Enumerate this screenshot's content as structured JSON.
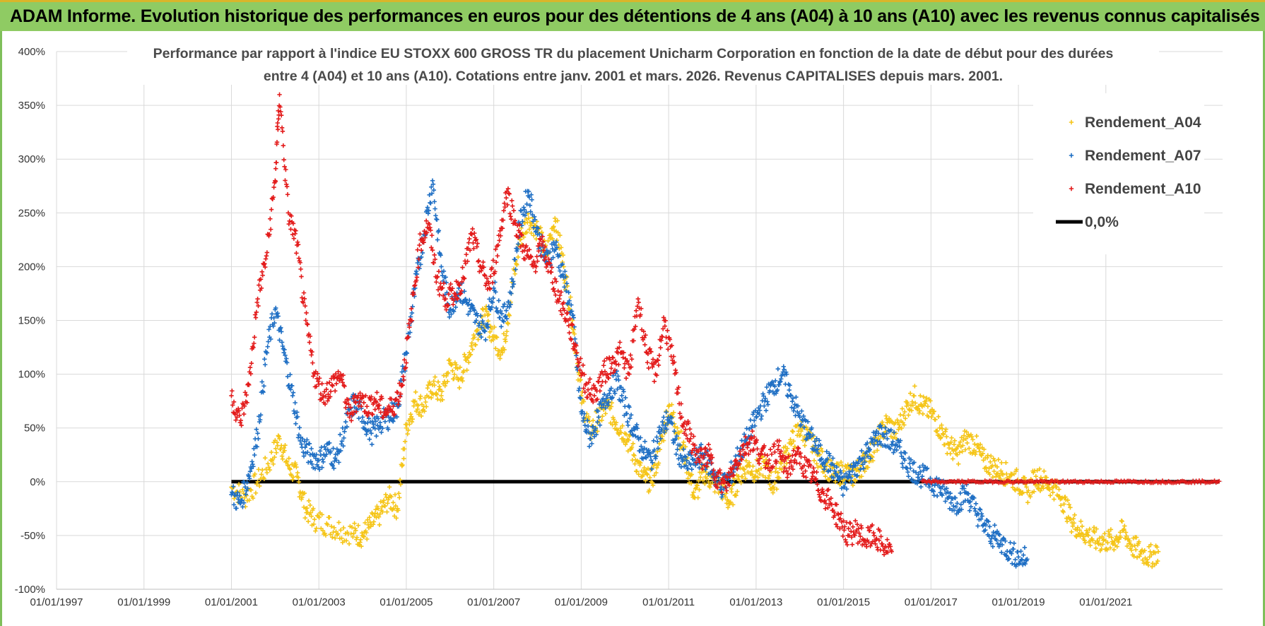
{
  "header": {
    "title": "ADAM Informe. Evolution historique des performances en euros pour des détentions de 4 ans (A04) à 10 ans (A10) avec les revenus connus capitalisés"
  },
  "chart_data": {
    "type": "scatter",
    "title_line1": "Performance par rapport à l'indice EU STOXX 600 GROSS TR  du placement Unicharm Corporation en fonction de la date de début pour des durées",
    "title_line2": "entre 4 (A04) et 10 ans (A10).  Cotations entre janv. 2001 et mars. 2026.  Revenus CAPITALISES depuis mars. 2001.",
    "xlabel": "",
    "ylabel": "",
    "ylim": [
      -100,
      400
    ],
    "xlim": [
      1997.0,
      2023.67
    ],
    "y_ticks": [
      "400%",
      "350%",
      "300%",
      "250%",
      "200%",
      "150%",
      "100%",
      "50%",
      "0%",
      "-50%",
      "-100%"
    ],
    "y_tick_values": [
      400,
      350,
      300,
      250,
      200,
      150,
      100,
      50,
      0,
      -50,
      -100
    ],
    "x_ticks": [
      "01/01/1997",
      "01/01/1999",
      "01/01/2001",
      "01/01/2003",
      "01/01/2005",
      "01/01/2007",
      "01/01/2009",
      "01/01/2011",
      "01/01/2013",
      "01/01/2015",
      "01/01/2017",
      "01/01/2019",
      "01/01/2021"
    ],
    "x_tick_values": [
      1997,
      1999,
      2001,
      2003,
      2005,
      2007,
      2009,
      2011,
      2013,
      2015,
      2017,
      2019,
      2021
    ],
    "grid": true,
    "legend_position": "top-right",
    "series": [
      {
        "name": "Rendement_A04",
        "color": "#f5c518",
        "marker": "plus",
        "points": [
          [
            2001.0,
            -5
          ],
          [
            2001.3,
            -15
          ],
          [
            2001.6,
            0
          ],
          [
            2001.9,
            20
          ],
          [
            2002.1,
            40
          ],
          [
            2002.3,
            15
          ],
          [
            2002.5,
            5
          ],
          [
            2002.7,
            -25
          ],
          [
            2002.9,
            -35
          ],
          [
            2003.2,
            -40
          ],
          [
            2003.5,
            -45
          ],
          [
            2003.8,
            -48
          ],
          [
            2004.0,
            -50
          ],
          [
            2004.2,
            -40
          ],
          [
            2004.4,
            -30
          ],
          [
            2004.6,
            -15
          ],
          [
            2004.8,
            -25
          ],
          [
            2005.0,
            50
          ],
          [
            2005.2,
            75
          ],
          [
            2005.4,
            70
          ],
          [
            2005.6,
            90
          ],
          [
            2005.8,
            80
          ],
          [
            2006.0,
            110
          ],
          [
            2006.2,
            95
          ],
          [
            2006.4,
            115
          ],
          [
            2006.6,
            140
          ],
          [
            2006.8,
            155
          ],
          [
            2007.0,
            135
          ],
          [
            2007.2,
            120
          ],
          [
            2007.4,
            175
          ],
          [
            2007.6,
            225
          ],
          [
            2007.8,
            245
          ],
          [
            2008.0,
            235
          ],
          [
            2008.2,
            210
          ],
          [
            2008.4,
            245
          ],
          [
            2008.6,
            200
          ],
          [
            2008.8,
            150
          ],
          [
            2009.0,
            80
          ],
          [
            2009.2,
            45
          ],
          [
            2009.4,
            60
          ],
          [
            2009.6,
            70
          ],
          [
            2009.8,
            55
          ],
          [
            2010.0,
            45
          ],
          [
            2010.2,
            25
          ],
          [
            2010.4,
            5
          ],
          [
            2010.6,
            0
          ],
          [
            2010.8,
            30
          ],
          [
            2011.0,
            70
          ],
          [
            2011.2,
            50
          ],
          [
            2011.4,
            20
          ],
          [
            2011.6,
            -15
          ],
          [
            2011.8,
            10
          ],
          [
            2012.0,
            0
          ],
          [
            2012.2,
            -5
          ],
          [
            2012.4,
            -20
          ],
          [
            2012.6,
            5
          ],
          [
            2012.8,
            15
          ],
          [
            2013.0,
            10
          ],
          [
            2013.2,
            15
          ],
          [
            2013.4,
            -5
          ],
          [
            2013.6,
            20
          ],
          [
            2013.8,
            35
          ],
          [
            2014.0,
            50
          ],
          [
            2014.2,
            40
          ],
          [
            2014.4,
            25
          ],
          [
            2014.6,
            15
          ],
          [
            2014.8,
            5
          ],
          [
            2015.0,
            10
          ],
          [
            2015.2,
            5
          ],
          [
            2015.4,
            15
          ],
          [
            2015.6,
            25
          ],
          [
            2015.8,
            40
          ],
          [
            2016.0,
            55
          ],
          [
            2016.2,
            45
          ],
          [
            2016.4,
            65
          ],
          [
            2016.6,
            80
          ],
          [
            2016.8,
            70
          ],
          [
            2017.0,
            65
          ],
          [
            2017.2,
            50
          ],
          [
            2017.4,
            35
          ],
          [
            2017.6,
            25
          ],
          [
            2017.8,
            40
          ],
          [
            2018.0,
            35
          ],
          [
            2018.2,
            20
          ],
          [
            2018.4,
            15
          ],
          [
            2018.6,
            10
          ],
          [
            2018.8,
            5
          ],
          [
            2019.0,
            0
          ],
          [
            2019.2,
            -10
          ],
          [
            2019.4,
            5
          ],
          [
            2019.6,
            0
          ],
          [
            2019.8,
            -5
          ],
          [
            2020.0,
            -15
          ],
          [
            2020.2,
            -35
          ],
          [
            2020.4,
            -45
          ],
          [
            2020.6,
            -50
          ],
          [
            2020.8,
            -55
          ],
          [
            2021.0,
            -55
          ],
          [
            2021.2,
            -55
          ],
          [
            2021.4,
            -45
          ],
          [
            2021.6,
            -60
          ],
          [
            2021.8,
            -65
          ],
          [
            2022.0,
            -70
          ],
          [
            2022.2,
            -65
          ]
        ]
      },
      {
        "name": "Rendement_A07",
        "color": "#1f6fc4",
        "marker": "plus",
        "points": [
          [
            2001.0,
            -12
          ],
          [
            2001.2,
            -20
          ],
          [
            2001.4,
            5
          ],
          [
            2001.6,
            45
          ],
          [
            2001.8,
            120
          ],
          [
            2002.0,
            160
          ],
          [
            2002.2,
            120
          ],
          [
            2002.4,
            80
          ],
          [
            2002.6,
            35
          ],
          [
            2002.8,
            25
          ],
          [
            2003.0,
            20
          ],
          [
            2003.2,
            30
          ],
          [
            2003.4,
            20
          ],
          [
            2003.6,
            50
          ],
          [
            2003.8,
            75
          ],
          [
            2004.0,
            60
          ],
          [
            2004.2,
            45
          ],
          [
            2004.4,
            55
          ],
          [
            2004.6,
            60
          ],
          [
            2004.8,
            70
          ],
          [
            2005.0,
            120
          ],
          [
            2005.2,
            180
          ],
          [
            2005.4,
            230
          ],
          [
            2005.6,
            280
          ],
          [
            2005.8,
            200
          ],
          [
            2006.0,
            160
          ],
          [
            2006.2,
            180
          ],
          [
            2006.4,
            165
          ],
          [
            2006.6,
            150
          ],
          [
            2006.8,
            140
          ],
          [
            2007.0,
            180
          ],
          [
            2007.2,
            150
          ],
          [
            2007.4,
            175
          ],
          [
            2007.6,
            240
          ],
          [
            2007.8,
            270
          ],
          [
            2008.0,
            230
          ],
          [
            2008.2,
            205
          ],
          [
            2008.4,
            220
          ],
          [
            2008.6,
            190
          ],
          [
            2008.8,
            155
          ],
          [
            2009.0,
            65
          ],
          [
            2009.2,
            40
          ],
          [
            2009.4,
            60
          ],
          [
            2009.6,
            80
          ],
          [
            2009.8,
            95
          ],
          [
            2010.0,
            70
          ],
          [
            2010.2,
            50
          ],
          [
            2010.4,
            30
          ],
          [
            2010.6,
            20
          ],
          [
            2010.8,
            45
          ],
          [
            2011.0,
            60
          ],
          [
            2011.2,
            30
          ],
          [
            2011.4,
            15
          ],
          [
            2011.6,
            20
          ],
          [
            2011.8,
            25
          ],
          [
            2012.0,
            10
          ],
          [
            2012.2,
            -5
          ],
          [
            2012.4,
            5
          ],
          [
            2012.6,
            25
          ],
          [
            2012.8,
            40
          ],
          [
            2013.0,
            60
          ],
          [
            2013.2,
            75
          ],
          [
            2013.4,
            90
          ],
          [
            2013.6,
            100
          ],
          [
            2013.8,
            80
          ],
          [
            2014.0,
            60
          ],
          [
            2014.2,
            45
          ],
          [
            2014.4,
            30
          ],
          [
            2014.6,
            20
          ],
          [
            2014.8,
            10
          ],
          [
            2015.0,
            -5
          ],
          [
            2015.2,
            10
          ],
          [
            2015.4,
            20
          ],
          [
            2015.6,
            30
          ],
          [
            2015.8,
            45
          ],
          [
            2016.0,
            40
          ],
          [
            2016.2,
            35
          ],
          [
            2016.4,
            20
          ],
          [
            2016.6,
            10
          ],
          [
            2016.8,
            5
          ],
          [
            2017.0,
            0
          ],
          [
            2017.2,
            -5
          ],
          [
            2017.4,
            -15
          ],
          [
            2017.6,
            -20
          ],
          [
            2017.8,
            -10
          ],
          [
            2018.0,
            -25
          ],
          [
            2018.2,
            -40
          ],
          [
            2018.4,
            -50
          ],
          [
            2018.6,
            -55
          ],
          [
            2018.8,
            -65
          ],
          [
            2019.0,
            -70
          ],
          [
            2019.2,
            -72
          ]
        ]
      },
      {
        "name": "Rendement_A10",
        "color": "#e31b1b",
        "marker": "plus",
        "points": [
          [
            2001.0,
            80
          ],
          [
            2001.2,
            55
          ],
          [
            2001.4,
            90
          ],
          [
            2001.6,
            170
          ],
          [
            2001.8,
            210
          ],
          [
            2002.0,
            280
          ],
          [
            2002.1,
            360
          ],
          [
            2002.3,
            250
          ],
          [
            2002.5,
            220
          ],
          [
            2002.7,
            150
          ],
          [
            2002.9,
            100
          ],
          [
            2003.1,
            80
          ],
          [
            2003.3,
            90
          ],
          [
            2003.5,
            100
          ],
          [
            2003.7,
            60
          ],
          [
            2003.9,
            80
          ],
          [
            2004.1,
            70
          ],
          [
            2004.3,
            75
          ],
          [
            2004.5,
            65
          ],
          [
            2004.7,
            70
          ],
          [
            2004.9,
            90
          ],
          [
            2005.1,
            150
          ],
          [
            2005.3,
            220
          ],
          [
            2005.5,
            240
          ],
          [
            2005.7,
            190
          ],
          [
            2005.9,
            170
          ],
          [
            2006.1,
            175
          ],
          [
            2006.3,
            190
          ],
          [
            2006.5,
            230
          ],
          [
            2006.7,
            200
          ],
          [
            2006.9,
            180
          ],
          [
            2007.1,
            220
          ],
          [
            2007.3,
            270
          ],
          [
            2007.5,
            240
          ],
          [
            2007.7,
            215
          ],
          [
            2007.9,
            200
          ],
          [
            2008.1,
            220
          ],
          [
            2008.3,
            195
          ],
          [
            2008.5,
            170
          ],
          [
            2008.7,
            150
          ],
          [
            2008.9,
            120
          ],
          [
            2009.1,
            90
          ],
          [
            2009.3,
            80
          ],
          [
            2009.5,
            100
          ],
          [
            2009.7,
            110
          ],
          [
            2009.9,
            120
          ],
          [
            2010.1,
            100
          ],
          [
            2010.3,
            170
          ],
          [
            2010.5,
            120
          ],
          [
            2010.7,
            100
          ],
          [
            2010.9,
            150
          ],
          [
            2011.1,
            110
          ],
          [
            2011.3,
            60
          ],
          [
            2011.5,
            40
          ],
          [
            2011.7,
            20
          ],
          [
            2011.9,
            25
          ],
          [
            2012.1,
            5
          ],
          [
            2012.3,
            -5
          ],
          [
            2012.5,
            15
          ],
          [
            2012.7,
            30
          ],
          [
            2012.9,
            40
          ],
          [
            2013.1,
            25
          ],
          [
            2013.3,
            20
          ],
          [
            2013.5,
            30
          ],
          [
            2013.7,
            10
          ],
          [
            2013.9,
            25
          ],
          [
            2014.1,
            15
          ],
          [
            2014.3,
            5
          ],
          [
            2014.5,
            -10
          ],
          [
            2014.7,
            -20
          ],
          [
            2014.9,
            -35
          ],
          [
            2015.1,
            -50
          ],
          [
            2015.3,
            -45
          ],
          [
            2015.5,
            -55
          ],
          [
            2015.7,
            -50
          ],
          [
            2015.9,
            -60
          ],
          [
            2016.1,
            -65
          ]
        ]
      }
    ],
    "zero_line": {
      "name": "0,0%",
      "value": 0,
      "color": "#000000"
    },
    "a10_flat_range": [
      2016.8,
      2023.6
    ]
  }
}
